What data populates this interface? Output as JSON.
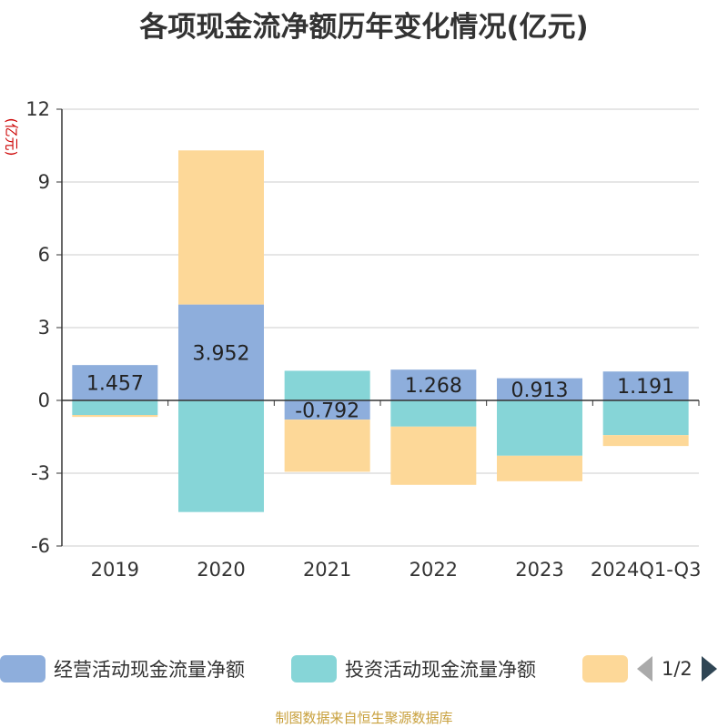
{
  "chart_data": {
    "type": "bar",
    "stacked": true,
    "title": "各项现金流净额历年变化情况(亿元)",
    "ylabel": "(亿元)",
    "categories": [
      "2019",
      "2020",
      "2021",
      "2022",
      "2023",
      "2024Q1-Q3"
    ],
    "ylim": [
      -6,
      12
    ],
    "yticks": [
      -6,
      -3,
      0,
      3,
      6,
      9,
      12
    ],
    "ytick_labels": [
      "-6",
      "-3",
      "0",
      "3",
      "6",
      "9",
      "12"
    ],
    "grid": true,
    "legend_position": "bottom",
    "series": [
      {
        "name": "经营活动现金流量净额",
        "color": "#8eaedc",
        "values": [
          1.457,
          3.952,
          -0.792,
          1.268,
          0.913,
          1.191
        ],
        "value_labels": [
          "1.457",
          "3.952",
          "-0.792",
          "1.268",
          "0.913",
          "1.191"
        ]
      },
      {
        "name": "投资活动现金流量净额",
        "color": "#86d5d7",
        "values": [
          -0.6,
          -4.6,
          1.22,
          -1.08,
          -2.28,
          -1.43
        ]
      },
      {
        "name": "",
        "color": "#fdd898",
        "values": [
          -0.08,
          6.35,
          -2.15,
          -2.4,
          -1.05,
          -0.45
        ]
      }
    ]
  },
  "legend": {
    "pager_text": "1/2"
  },
  "colors": {
    "axis": "#333333",
    "grid": "#cccccc",
    "title": "#333333",
    "unit": "#cc0000",
    "source": "#c8a03c"
  },
  "source_note": "制图数据来自恒生聚源数据库"
}
